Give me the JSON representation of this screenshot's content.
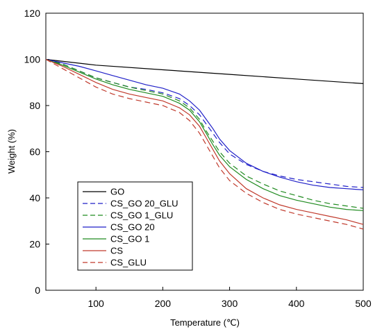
{
  "chart_data": {
    "type": "line",
    "xlabel": "Temperature (℃)",
    "ylabel": "Weight (%)",
    "xlim": [
      25,
      500
    ],
    "ylim": [
      0,
      120
    ],
    "xticks": [
      100,
      200,
      300,
      400,
      500
    ],
    "yticks": [
      0,
      20,
      40,
      60,
      80,
      100,
      120
    ],
    "grid": false,
    "legend_position": "lower-left",
    "series": [
      {
        "name": "GO",
        "color": "#000000",
        "dash": "solid",
        "x": [
          25,
          100,
          200,
          300,
          400,
          500
        ],
        "y": [
          100,
          97.5,
          95.5,
          93.5,
          91.5,
          89.5
        ]
      },
      {
        "name": "CS_GO 20_GLU",
        "color": "#1f1fc8",
        "dash": "dashed",
        "x": [
          25,
          50,
          75,
          100,
          125,
          150,
          175,
          200,
          225,
          240,
          255,
          265,
          275,
          285,
          300,
          325,
          350,
          375,
          400,
          425,
          450,
          475,
          500
        ],
        "y": [
          100,
          98,
          95,
          92,
          90,
          88,
          87,
          85.5,
          83,
          80,
          76,
          72,
          68,
          64,
          59,
          54.5,
          51.5,
          49.5,
          48,
          47,
          46,
          45,
          44.5
        ]
      },
      {
        "name": "CS_GO 1_GLU",
        "color": "#1e8a1e",
        "dash": "dashed",
        "x": [
          25,
          50,
          75,
          100,
          125,
          150,
          175,
          200,
          225,
          240,
          255,
          265,
          275,
          285,
          300,
          325,
          350,
          375,
          400,
          425,
          450,
          475,
          500
        ],
        "y": [
          100,
          98,
          95,
          92,
          90,
          88,
          86.5,
          85,
          82,
          79,
          74,
          69,
          64.5,
          60,
          55,
          49.5,
          46,
          43,
          41,
          39,
          37.5,
          36.5,
          35.5
        ]
      },
      {
        "name": "CS_GO 20",
        "color": "#1f1fc8",
        "dash": "solid",
        "x": [
          25,
          50,
          75,
          100,
          125,
          150,
          175,
          200,
          225,
          240,
          255,
          265,
          275,
          285,
          300,
          325,
          350,
          375,
          400,
          425,
          450,
          475,
          500
        ],
        "y": [
          100,
          98.5,
          97,
          95,
          93,
          91,
          89,
          87.5,
          85,
          82,
          78,
          74,
          70,
          65.5,
          60.5,
          55,
          51.5,
          49,
          47,
          45.5,
          44.5,
          44,
          43.5
        ]
      },
      {
        "name": "CS_GO 1",
        "color": "#1e8a1e",
        "dash": "solid",
        "x": [
          25,
          50,
          75,
          100,
          125,
          150,
          175,
          200,
          225,
          240,
          255,
          265,
          275,
          285,
          300,
          325,
          350,
          375,
          400,
          425,
          450,
          475,
          500
        ],
        "y": [
          100,
          97.5,
          94.5,
          91.5,
          89,
          87,
          85.5,
          84,
          81,
          78,
          73,
          68,
          63,
          58.5,
          53.5,
          48,
          44,
          41,
          39,
          37.5,
          36,
          35,
          34.5
        ]
      },
      {
        "name": "CS",
        "color": "#c0392b",
        "dash": "solid",
        "x": [
          25,
          50,
          75,
          100,
          125,
          150,
          175,
          200,
          225,
          240,
          255,
          265,
          275,
          285,
          300,
          325,
          350,
          375,
          400,
          425,
          450,
          475,
          500
        ],
        "y": [
          100,
          97,
          93.5,
          90,
          87,
          85,
          83.5,
          82,
          79,
          76,
          71,
          66,
          61,
          56,
          50.5,
          44,
          40,
          37,
          35,
          33.5,
          32,
          30.5,
          28.5
        ]
      },
      {
        "name": "CS_GLU",
        "color": "#c0392b",
        "dash": "dashed",
        "x": [
          25,
          50,
          75,
          100,
          125,
          150,
          175,
          200,
          225,
          240,
          255,
          265,
          275,
          285,
          300,
          325,
          350,
          375,
          400,
          425,
          450,
          475,
          500
        ],
        "y": [
          100,
          96,
          92,
          88,
          85,
          83,
          81.5,
          80,
          77,
          73.5,
          68,
          63,
          58,
          53,
          47.5,
          42,
          38,
          35,
          33,
          31.5,
          30,
          28.5,
          26.5
        ]
      }
    ]
  }
}
